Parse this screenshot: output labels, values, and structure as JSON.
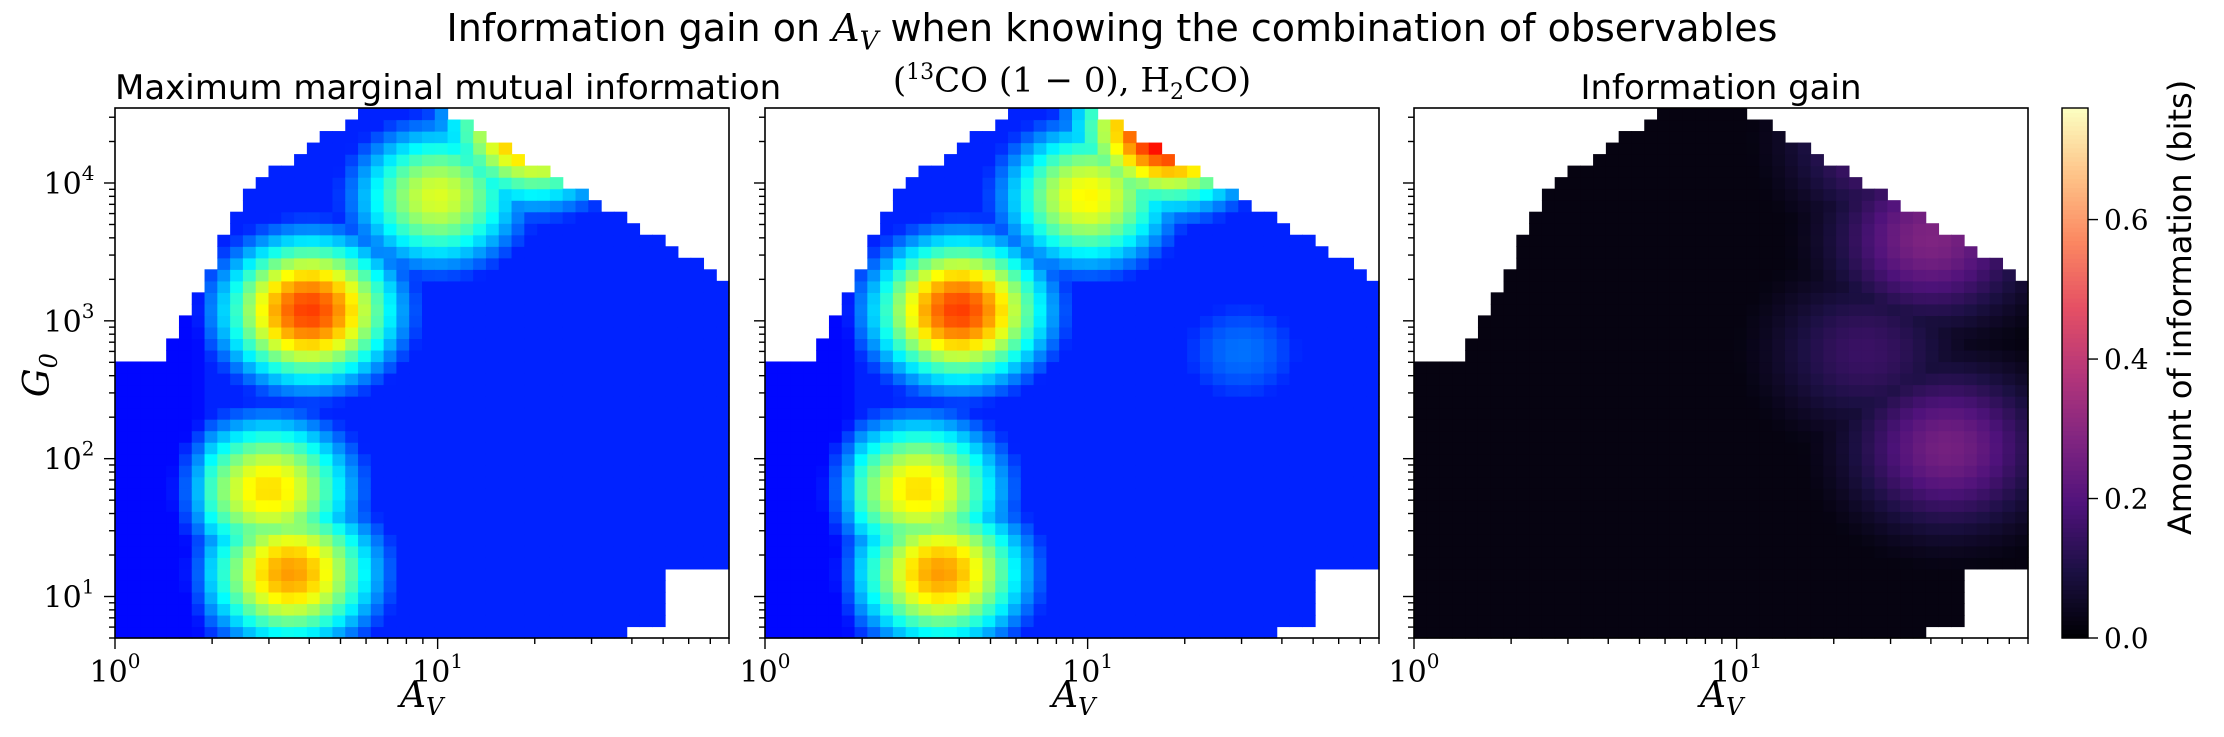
{
  "figure": {
    "suptitle_prefix": "Information gain on ",
    "suptitle_var": "A",
    "suptitle_var_sub": "V",
    "suptitle_suffix": " when knowing the combination of observables",
    "colorbar_label": "Amount of information (bits)"
  },
  "panels": [
    {
      "title": "Maximum marginal mutual information",
      "colormap": "jet",
      "show_ylabel": true
    },
    {
      "title_parts": {
        "open": "(",
        "sup": "13",
        "co": "CO (1 − 0), H",
        "sub": "2",
        "tail": "CO)"
      },
      "colormap": "jet",
      "show_ylabel": false
    },
    {
      "title": "Information gain",
      "colormap": "magma",
      "show_ylabel": false
    }
  ],
  "axes": {
    "xlabel_main": "A",
    "xlabel_sub": "V",
    "ylabel_main": "G",
    "ylabel_sub": "0",
    "x_ticks": [
      {
        "value": 1,
        "label": "10",
        "exp": "0"
      },
      {
        "value": 10,
        "label": "10",
        "exp": "1"
      }
    ],
    "y_ticks": [
      {
        "value": 10,
        "label": "10",
        "exp": "1"
      },
      {
        "value": 100,
        "label": "10",
        "exp": "2"
      },
      {
        "value": 1000,
        "label": "10",
        "exp": "3"
      },
      {
        "value": 10000,
        "label": "10",
        "exp": "4"
      }
    ],
    "x_range": [
      1,
      80
    ],
    "y_range": [
      5,
      35000
    ],
    "x_scale": "log",
    "y_scale": "log"
  },
  "colorbar": {
    "range": [
      0.0,
      0.76
    ],
    "ticks": [
      "0.0",
      "0.2",
      "0.4",
      "0.6"
    ],
    "tick_values": [
      0.0,
      0.2,
      0.4,
      0.6
    ],
    "colormap": "magma"
  },
  "chart_data": [
    {
      "type": "heatmap",
      "title": "Maximum marginal mutual information",
      "xlabel": "A_V",
      "ylabel": "G_0",
      "x_scale": "log",
      "y_scale": "log",
      "xlim": [
        1,
        80
      ],
      "ylim": [
        5,
        35000
      ],
      "value_range": [
        0.0,
        0.76
      ],
      "colormap": "jet",
      "blobs": [
        {
          "x": 4.0,
          "y": 1200,
          "value": 0.62
        },
        {
          "x": 3.5,
          "y": 15,
          "value": 0.55
        },
        {
          "x": 3.0,
          "y": 60,
          "value": 0.5
        },
        {
          "x": 20,
          "y": 25000,
          "value": 0.6
        },
        {
          "x": 10,
          "y": 8000,
          "value": 0.45
        },
        {
          "x": 1.2,
          "y": 200,
          "value": 0.1
        },
        {
          "x": 30,
          "y": 30,
          "value": 0.1
        },
        {
          "x": 30,
          "y": 600,
          "value": 0.12
        }
      ]
    },
    {
      "type": "heatmap",
      "title": "(13CO (1 − 0), H2CO)",
      "xlabel": "A_V",
      "x_scale": "log",
      "y_scale": "log",
      "xlim": [
        1,
        80
      ],
      "ylim": [
        5,
        35000
      ],
      "value_range": [
        0.0,
        0.76
      ],
      "colormap": "jet",
      "blobs": [
        {
          "x": 4.0,
          "y": 1200,
          "value": 0.62
        },
        {
          "x": 3.5,
          "y": 15,
          "value": 0.55
        },
        {
          "x": 3.0,
          "y": 60,
          "value": 0.5
        },
        {
          "x": 18,
          "y": 25000,
          "value": 0.72
        },
        {
          "x": 10,
          "y": 8000,
          "value": 0.48
        },
        {
          "x": 1.2,
          "y": 200,
          "value": 0.1
        },
        {
          "x": 30,
          "y": 30,
          "value": 0.12
        },
        {
          "x": 30,
          "y": 600,
          "value": 0.18
        }
      ]
    },
    {
      "type": "heatmap",
      "title": "Information gain",
      "xlabel": "A_V",
      "x_scale": "log",
      "y_scale": "log",
      "xlim": [
        1,
        80
      ],
      "ylim": [
        5,
        35000
      ],
      "value_range": [
        0.0,
        0.76
      ],
      "colormap": "magma",
      "blobs": [
        {
          "x": 40,
          "y": 4000,
          "value": 0.28
        },
        {
          "x": 45,
          "y": 120,
          "value": 0.26
        },
        {
          "x": 30,
          "y": 20000,
          "value": 0.22
        },
        {
          "x": 25,
          "y": 600,
          "value": 0.15
        }
      ]
    }
  ]
}
